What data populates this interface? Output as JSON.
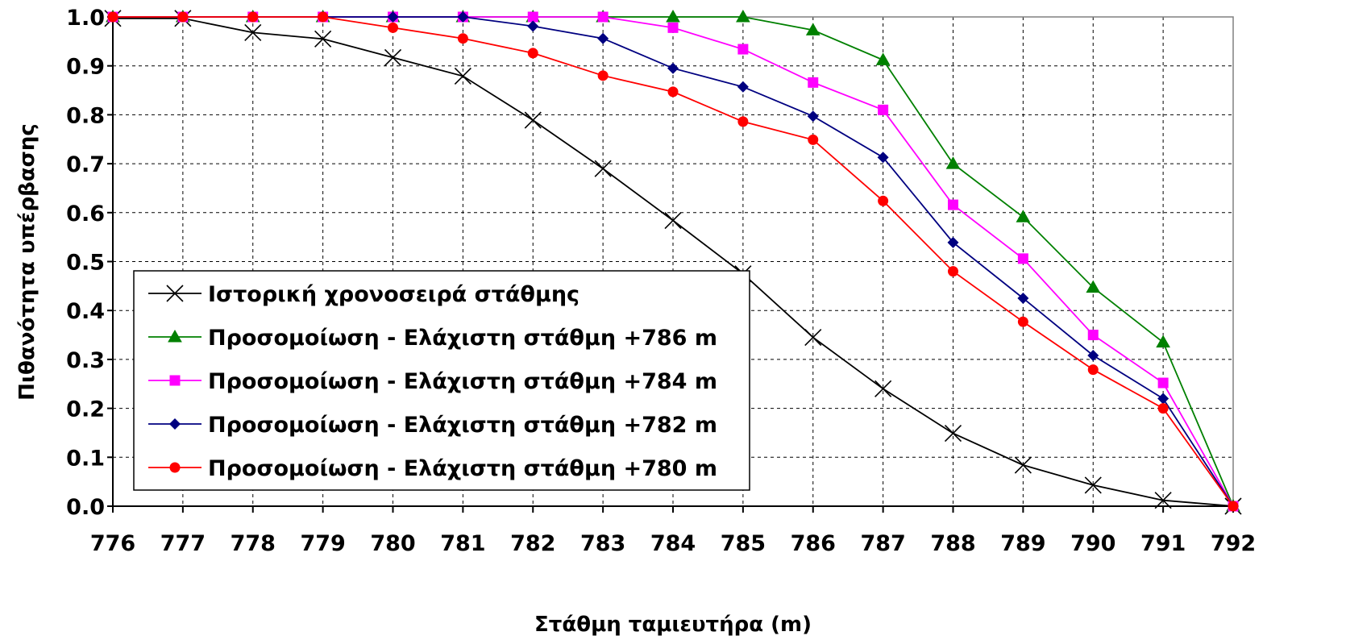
{
  "chart_data": {
    "type": "line",
    "title": "",
    "xlabel": "Στάθμη ταμιευτήρα (m)",
    "ylabel": "Πιθανότητα υπέρβασης",
    "xlim": [
      776,
      792
    ],
    "ylim": [
      0,
      1.0
    ],
    "x_ticks": [
      "776",
      "777",
      "778",
      "779",
      "780",
      "781",
      "782",
      "783",
      "784",
      "785",
      "786",
      "787",
      "788",
      "789",
      "790",
      "791",
      "792"
    ],
    "y_ticks": [
      "0.0",
      "0.1",
      "0.2",
      "0.3",
      "0.4",
      "0.5",
      "0.6",
      "0.7",
      "0.8",
      "0.9",
      "1.0"
    ],
    "grid": true,
    "legend_position": "bottom-left",
    "series": [
      {
        "name": "Ιστορική χρονοσειρά στάθμης",
        "color": "#000000",
        "marker": "x",
        "x": [
          776,
          777,
          778,
          779,
          780,
          781,
          782,
          783,
          784,
          785,
          786,
          787,
          788,
          789,
          790,
          791,
          792
        ],
        "values": [
          0.997,
          0.997,
          0.968,
          0.955,
          0.917,
          0.879,
          0.789,
          0.69,
          0.584,
          0.475,
          0.345,
          0.24,
          0.149,
          0.084,
          0.043,
          0.012,
          0.0
        ]
      },
      {
        "name": "Προσομοίωση - Ελάχιστη στάθμη +786 m",
        "color": "#008000",
        "marker": "triangle",
        "x": [
          776,
          777,
          778,
          779,
          780,
          781,
          782,
          783,
          784,
          785,
          786,
          787,
          788,
          789,
          790,
          791,
          792
        ],
        "values": [
          1.0,
          1.0,
          1.0,
          1.0,
          1.0,
          1.0,
          1.0,
          1.0,
          1.0,
          1.0,
          0.973,
          0.912,
          0.7,
          0.591,
          0.447,
          0.335,
          0.0
        ]
      },
      {
        "name": "Προσομοίωση - Ελάχιστη στάθμη +784 m",
        "color": "#FF00FF",
        "marker": "square",
        "x": [
          776,
          777,
          778,
          779,
          780,
          781,
          782,
          783,
          784,
          785,
          786,
          787,
          788,
          789,
          790,
          791,
          792
        ],
        "values": [
          1.0,
          1.0,
          1.0,
          1.0,
          1.0,
          1.0,
          1.0,
          1.0,
          0.978,
          0.934,
          0.866,
          0.81,
          0.616,
          0.506,
          0.35,
          0.252,
          0.0
        ]
      },
      {
        "name": "Προσομοίωση - Ελάχιστη στάθμη +782 m",
        "color": "#000080",
        "marker": "diamond",
        "x": [
          776,
          777,
          778,
          779,
          780,
          781,
          782,
          783,
          784,
          785,
          786,
          787,
          788,
          789,
          790,
          791,
          792
        ],
        "values": [
          1.0,
          1.0,
          1.0,
          1.0,
          1.0,
          1.0,
          0.981,
          0.956,
          0.895,
          0.857,
          0.797,
          0.713,
          0.539,
          0.425,
          0.308,
          0.22,
          0.0
        ]
      },
      {
        "name": "Προσομοίωση - Ελάχιστη στάθμη +780 m",
        "color": "#FF0000",
        "marker": "circle",
        "x": [
          776,
          777,
          778,
          779,
          780,
          781,
          782,
          783,
          784,
          785,
          786,
          787,
          788,
          789,
          790,
          791,
          792
        ],
        "values": [
          1.0,
          1.0,
          1.0,
          1.0,
          0.978,
          0.956,
          0.926,
          0.88,
          0.847,
          0.786,
          0.749,
          0.624,
          0.48,
          0.377,
          0.279,
          0.2,
          0.0
        ]
      }
    ]
  }
}
